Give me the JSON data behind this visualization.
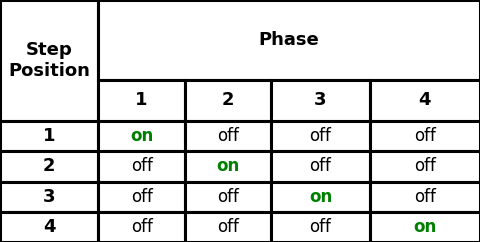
{
  "title_col": "Step\nPosition",
  "title_phase": "Phase",
  "phase_headers": [
    "1",
    "2",
    "3",
    "4"
  ],
  "step_positions": [
    "1",
    "2",
    "3",
    "4"
  ],
  "table_data": [
    [
      "on",
      "off",
      "off",
      "off"
    ],
    [
      "off",
      "on",
      "off",
      "off"
    ],
    [
      "off",
      "off",
      "on",
      "off"
    ],
    [
      "off",
      "off",
      "off",
      "on"
    ]
  ],
  "on_color": "#008000",
  "off_color": "#000000",
  "header_color": "#000000",
  "bg_color": "#ffffff",
  "border_color": "#000000",
  "fig_width": 4.8,
  "fig_height": 2.42,
  "dpi": 100,
  "col_boundaries": [
    0.0,
    0.205,
    0.385,
    0.565,
    0.77,
    1.0
  ],
  "row_boundaries": [
    1.0,
    0.67,
    0.5,
    0.375,
    0.25,
    0.125,
    0.0
  ],
  "header_fontsize": 13,
  "data_fontsize": 12,
  "lw": 2.2
}
